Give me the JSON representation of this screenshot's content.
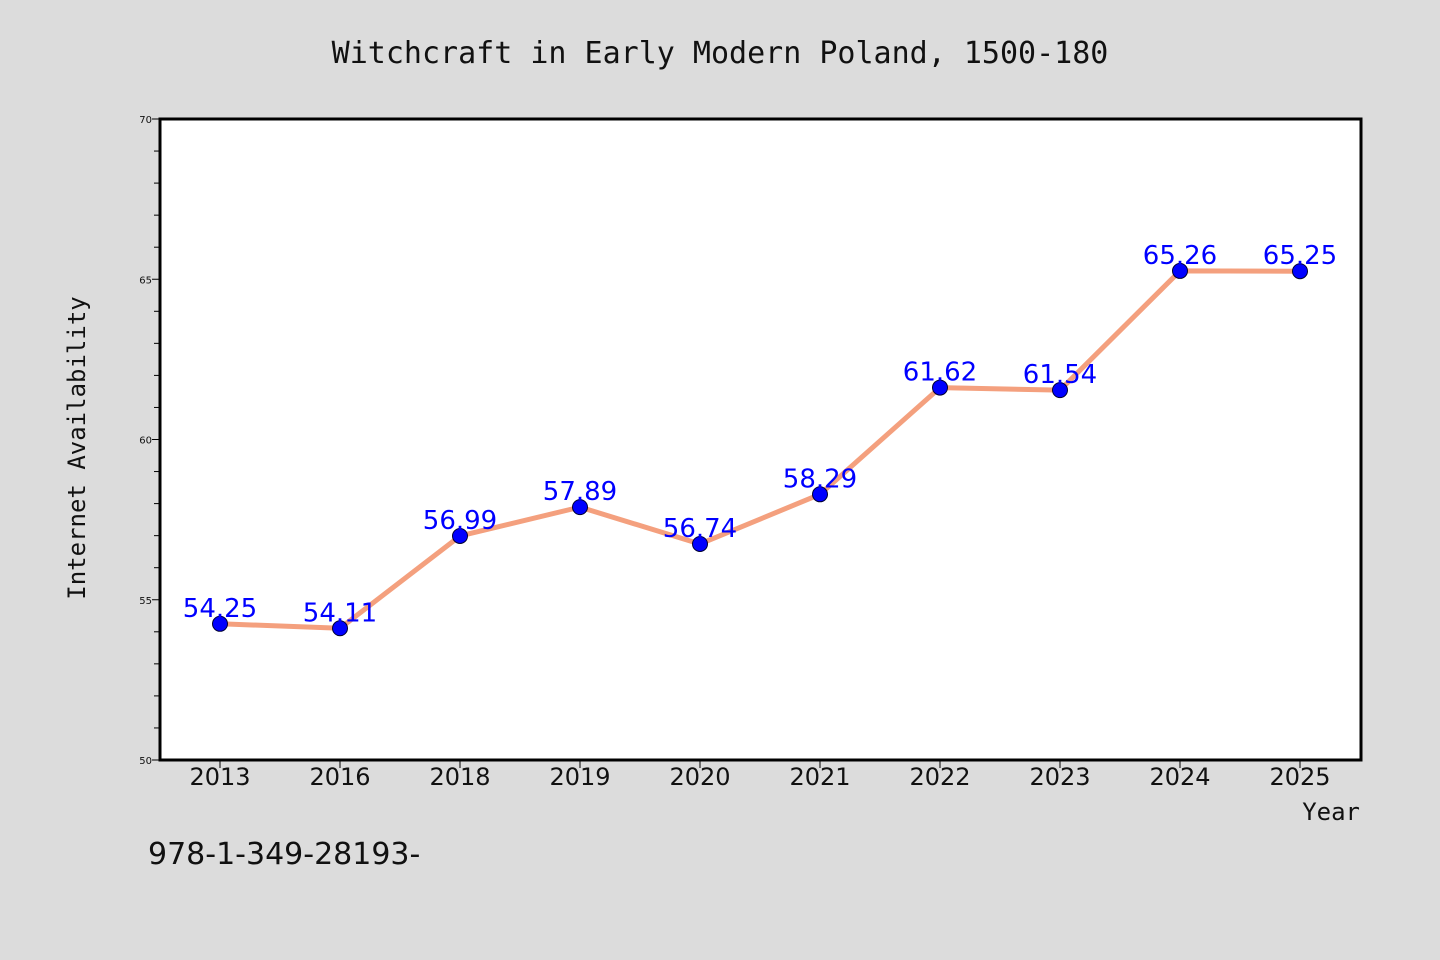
{
  "chart_data": {
    "type": "line",
    "title": "Witchcraft in Early Modern Poland, 1500-180",
    "xlabel": "Year",
    "ylabel": "Internet Availability",
    "categories": [
      "2013",
      "2016",
      "2018",
      "2019",
      "2020",
      "2021",
      "2022",
      "2023",
      "2024",
      "2025"
    ],
    "series": [
      {
        "values": [
          54.25,
          54.11,
          56.99,
          57.89,
          56.74,
          58.29,
          61.62,
          61.54,
          65.26,
          65.25
        ],
        "labels": [
          "54.25",
          "54.11",
          "56.99",
          "57.89",
          "56.74",
          "58.29",
          "61.62",
          "61.54",
          "65.26",
          "65.25"
        ]
      }
    ],
    "ylim": [
      50,
      70
    ],
    "yticks": [
      "50",
      "55",
      "60",
      "65",
      "70"
    ],
    "grid": false,
    "legend": "none",
    "colors": {
      "line": "#f4a07e",
      "marker": "#0000ff",
      "data_label": "#0000ff",
      "background": "#dcdcdc",
      "plot_background": "#ffffff"
    }
  },
  "footer": {
    "text": "978-1-349-28193-"
  }
}
